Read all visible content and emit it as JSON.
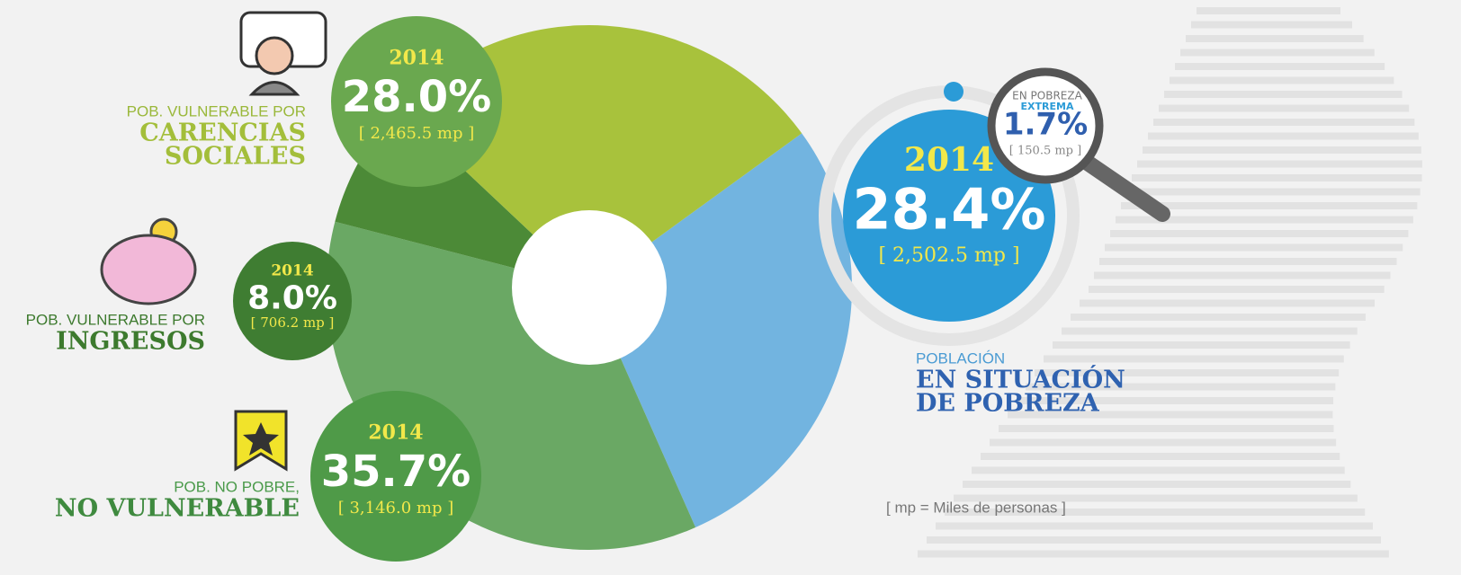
{
  "chart_data": {
    "type": "pie",
    "year": "2014",
    "categories": [
      [
        "EN SITUACIÓN",
        "DE POBREZA"
      ],
      [
        "NO VULNERABLE"
      ],
      [
        "INGRESOS"
      ],
      [
        "CARENCIAS",
        "SOCIALES"
      ]
    ],
    "category_prefixes": [
      "POBLACIÓN",
      "POB. NO POBRE,",
      "POB. VULNERABLE POR",
      "POB. VULNERABLE POR"
    ],
    "values": [
      28.4,
      35.7,
      8.0,
      28.0
    ],
    "value_labels": [
      "28.4%",
      "35.7%",
      "8.0%",
      "28.0%"
    ],
    "people": [
      2502.5,
      3146.0,
      706.2,
      2465.5
    ],
    "people_labels": [
      "[ 2,502.5 mp ]",
      "[ 3,146.0 mp ]",
      "[ 706.2 mp ]",
      "[ 2,465.5 mp ]"
    ],
    "colors": [
      "#72b4e0",
      "#6aa864",
      "#4c8a37",
      "#a8c23c"
    ],
    "inset": {
      "title_lines": [
        "EN POBREZA",
        "EXTREMA"
      ],
      "value": 1.7,
      "value_label": "1.7%",
      "people": 150.5,
      "people_label": "[ 150.5 mp ]"
    },
    "note": "[ mp = Miles de personas ]"
  }
}
